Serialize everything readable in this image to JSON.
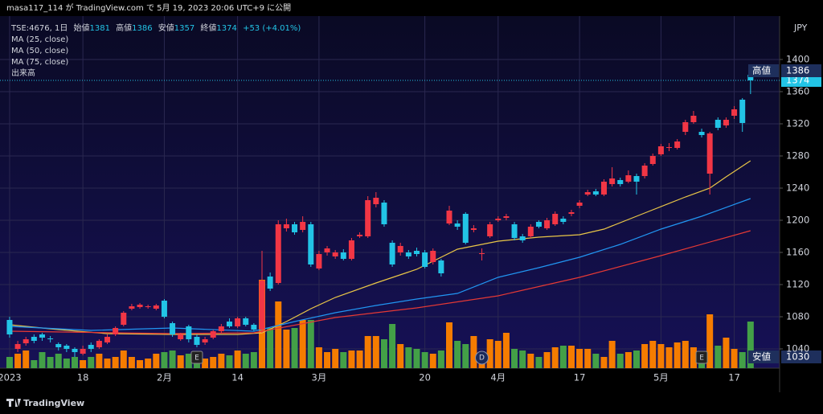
{
  "header": "masa117_114 が TradingView.com で 5月 19, 2023 20:06 UTC+9 に公開",
  "brand": "TradingView",
  "chart_data": {
    "type": "candlestick",
    "symbol": "TSE:4676, 1日",
    "ohlc_labels": {
      "open": "始値",
      "high": "高値",
      "low": "安値",
      "close": "終値"
    },
    "change": "+53 (+4.01%)",
    "currency": "JPY",
    "high_label": "高値",
    "low_label": "安値",
    "up_color": "#f23645",
    "down_color": "#22c4e6",
    "open": [
      1076,
      1040,
      1047,
      1055,
      1058,
      1053,
      1046,
      1044,
      1040,
      1034,
      1045,
      1042,
      1048,
      1058,
      1070,
      1090,
      1092,
      1092,
      1090,
      1100,
      1072,
      1052,
      1068,
      1055,
      1048,
      1054,
      1062,
      1074,
      1068,
      1078,
      1070,
      1064,
      1130,
      1122,
      1190,
      1195,
      1188,
      1195,
      1140,
      1160,
      1155,
      1160,
      1152,
      1180,
      1180,
      1220,
      1222,
      1172,
      1160,
      1160,
      1162,
      1160,
      1148,
      1150,
      1196,
      1196,
      1208,
      1188,
      1158,
      1180,
      1200,
      1203,
      1195,
      1180,
      1180,
      1198,
      1190,
      1195,
      1202,
      1208,
      1218,
      1232,
      1236,
      1232,
      1245,
      1250,
      1248,
      1255,
      1255,
      1270,
      1282,
      1290,
      1290,
      1310,
      1322,
      1310,
      1258,
      1325,
      1318,
      1330,
      1350,
      1381
    ],
    "high": [
      1080,
      1050,
      1055,
      1058,
      1060,
      1056,
      1048,
      1046,
      1042,
      1044,
      1048,
      1052,
      1058,
      1068,
      1087,
      1096,
      1097,
      1095,
      1096,
      1102,
      1074,
      1060,
      1070,
      1058,
      1055,
      1064,
      1071,
      1078,
      1080,
      1080,
      1072,
      1162,
      1135,
      1200,
      1202,
      1198,
      1205,
      1198,
      1162,
      1168,
      1163,
      1164,
      1178,
      1185,
      1230,
      1235,
      1225,
      1175,
      1172,
      1163,
      1166,
      1163,
      1165,
      1152,
      1218,
      1200,
      1210,
      1194,
      1165,
      1198,
      1205,
      1208,
      1198,
      1183,
      1195,
      1200,
      1203,
      1211,
      1205,
      1213,
      1225,
      1238,
      1239,
      1251,
      1266,
      1253,
      1262,
      1258,
      1271,
      1283,
      1295,
      1296,
      1301,
      1325,
      1336,
      1314,
      1310,
      1328,
      1328,
      1342,
      1352,
      1386
    ],
    "low": [
      1054,
      1036,
      1044,
      1047,
      1050,
      1048,
      1038,
      1036,
      1030,
      1032,
      1036,
      1040,
      1046,
      1056,
      1068,
      1088,
      1090,
      1090,
      1088,
      1078,
      1055,
      1050,
      1048,
      1042,
      1045,
      1052,
      1060,
      1066,
      1066,
      1068,
      1062,
      1060,
      1112,
      1120,
      1186,
      1182,
      1185,
      1142,
      1138,
      1156,
      1152,
      1150,
      1150,
      1178,
      1178,
      1216,
      1192,
      1142,
      1156,
      1152,
      1155,
      1140,
      1145,
      1130,
      1194,
      1188,
      1170,
      1185,
      1150,
      1178,
      1198,
      1200,
      1175,
      1172,
      1178,
      1190,
      1188,
      1193,
      1195,
      1205,
      1215,
      1230,
      1230,
      1230,
      1242,
      1242,
      1246,
      1232,
      1252,
      1268,
      1280,
      1286,
      1288,
      1306,
      1320,
      1303,
      1232,
      1312,
      1315,
      1326,
      1310,
      1357
    ],
    "close": [
      1058,
      1046,
      1052,
      1050,
      1054,
      1052,
      1042,
      1040,
      1036,
      1040,
      1040,
      1050,
      1055,
      1066,
      1085,
      1093,
      1095,
      1093,
      1094,
      1080,
      1058,
      1058,
      1052,
      1045,
      1052,
      1062,
      1068,
      1068,
      1078,
      1070,
      1064,
      1125,
      1115,
      1195,
      1195,
      1185,
      1198,
      1145,
      1158,
      1165,
      1160,
      1152,
      1175,
      1182,
      1225,
      1228,
      1195,
      1145,
      1168,
      1155,
      1158,
      1142,
      1162,
      1134,
      1212,
      1192,
      1172,
      1190,
      1159,
      1195,
      1202,
      1205,
      1178,
      1175,
      1192,
      1192,
      1200,
      1208,
      1198,
      1210,
      1222,
      1235,
      1232,
      1248,
      1252,
      1245,
      1256,
      1248,
      1268,
      1280,
      1292,
      1291,
      1298,
      1322,
      1330,
      1306,
      1308,
      1315,
      1325,
      1338,
      1321,
      1374
    ],
    "volume": {
      "name": "出来高",
      "up_color": "#f57c00",
      "down_color": "#43a047",
      "values": [
        14,
        18,
        22,
        10,
        20,
        14,
        18,
        12,
        14,
        10,
        14,
        18,
        12,
        14,
        22,
        14,
        10,
        12,
        18,
        20,
        22,
        16,
        18,
        14,
        12,
        14,
        18,
        16,
        22,
        18,
        20,
        110,
        50,
        83,
        48,
        50,
        60,
        60,
        26,
        20,
        24,
        20,
        22,
        22,
        40,
        40,
        36,
        55,
        30,
        26,
        24,
        20,
        18,
        22,
        57,
        34,
        30,
        40,
        20,
        36,
        34,
        44,
        24,
        22,
        18,
        14,
        20,
        26,
        28,
        28,
        24,
        24,
        18,
        14,
        34,
        18,
        20,
        22,
        30,
        34,
        30,
        26,
        32,
        34,
        26,
        20,
        67,
        28,
        38,
        24,
        20,
        58
      ]
    },
    "moving_averages": [
      {
        "name": "MA (25, close)",
        "color": "#e8c547",
        "x": [
          0,
          6,
          12,
          20,
          28,
          31,
          34,
          37,
          40,
          45,
          50,
          55,
          60,
          65,
          70,
          73,
          78,
          83,
          86,
          88,
          91
        ],
        "values": [
          1070,
          1064,
          1059,
          1058,
          1058,
          1060,
          1074,
          1090,
          1104,
          1122,
          1139,
          1164,
          1174,
          1179,
          1182,
          1189,
          1209,
          1229,
          1240,
          1254,
          1274
        ]
      },
      {
        "name": "MA (50, close)",
        "color": "#2196f3",
        "x": [
          0,
          10,
          20,
          30,
          35,
          40,
          45,
          50,
          55,
          60,
          65,
          70,
          75,
          80,
          85,
          91
        ],
        "values": [
          1068,
          1063,
          1066,
          1062,
          1074,
          1085,
          1094,
          1102,
          1109,
          1129,
          1141,
          1154,
          1170,
          1189,
          1205,
          1227
        ]
      },
      {
        "name": "MA (75, close)",
        "color": "#e53935",
        "x": [
          0,
          20,
          30,
          40,
          50,
          60,
          70,
          80,
          91
        ],
        "values": [
          1062,
          1059,
          1060,
          1079,
          1091,
          1106,
          1129,
          1156,
          1187
        ]
      }
    ],
    "events": [
      {
        "x": 23,
        "label": "E"
      },
      {
        "x": 58,
        "label": "D"
      },
      {
        "x": 85,
        "label": "E"
      }
    ],
    "xlim": [
      -1.18,
      94.57
    ],
    "xticks": [
      {
        "value": 0,
        "label": "2023"
      },
      {
        "value": 9,
        "label": "18"
      },
      {
        "value": 19,
        "label": "2月"
      },
      {
        "value": 28,
        "label": "14"
      },
      {
        "value": 38,
        "label": "3月"
      },
      {
        "value": 51,
        "label": "20"
      },
      {
        "value": 60,
        "label": "4月"
      },
      {
        "value": 70,
        "label": "17"
      },
      {
        "value": 80,
        "label": "5月"
      },
      {
        "value": 89,
        "label": "17"
      }
    ],
    "ylim": [
      1016,
      1454
    ],
    "yticks": [
      1040,
      1080,
      1120,
      1160,
      1200,
      1240,
      1280,
      1320,
      1360,
      1400
    ],
    "grid": true
  }
}
